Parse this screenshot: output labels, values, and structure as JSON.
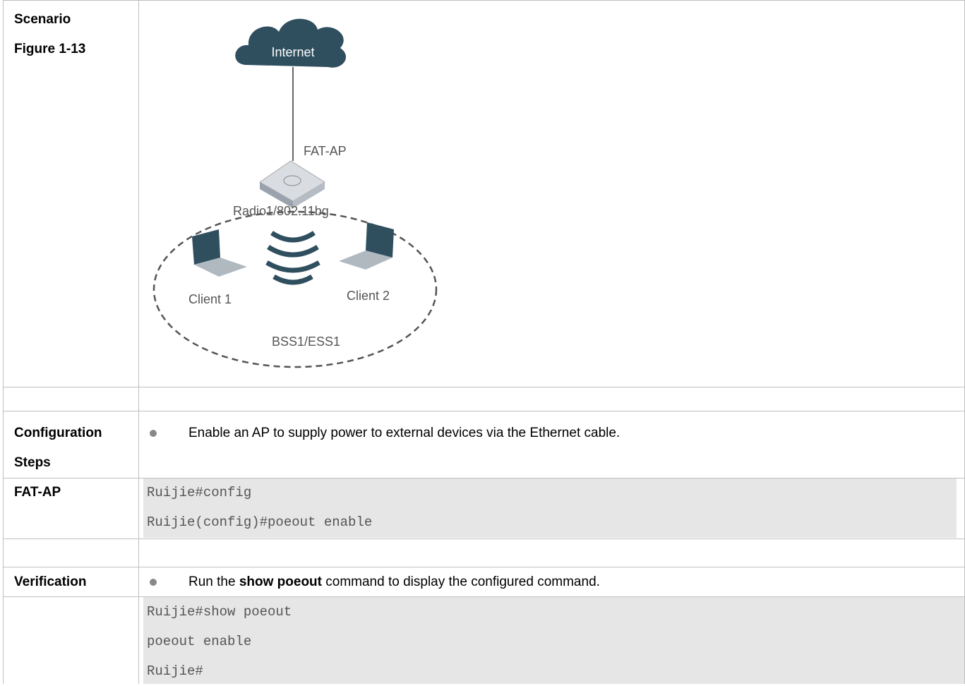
{
  "rows": [
    {
      "label": [
        "Scenario",
        "Figure 1-13"
      ],
      "diagram": {
        "internet": "Internet",
        "ap": "FAT-AP",
        "radio": "Radio1/802.11bg",
        "client1": "Client 1",
        "client2": "Client 2",
        "bss": "BSS1/ESS1"
      }
    },
    {
      "label": [
        "Configuration",
        "Steps"
      ],
      "bullet": [
        "Enable an AP to supply power to external devices via the Ethernet cable."
      ]
    },
    {
      "label": [
        "FAT-AP"
      ],
      "code": [
        "Ruijie#config",
        "Ruijie(config)#poeout enable"
      ]
    },
    {
      "label": [
        "Verification"
      ],
      "bullet": [
        "Run the ",
        "show poeout",
        " command to display the configured command."
      ]
    },
    {
      "code": [
        "Ruijie#show poeout",
        "poeout enable",
        "Ruijie#"
      ]
    }
  ]
}
